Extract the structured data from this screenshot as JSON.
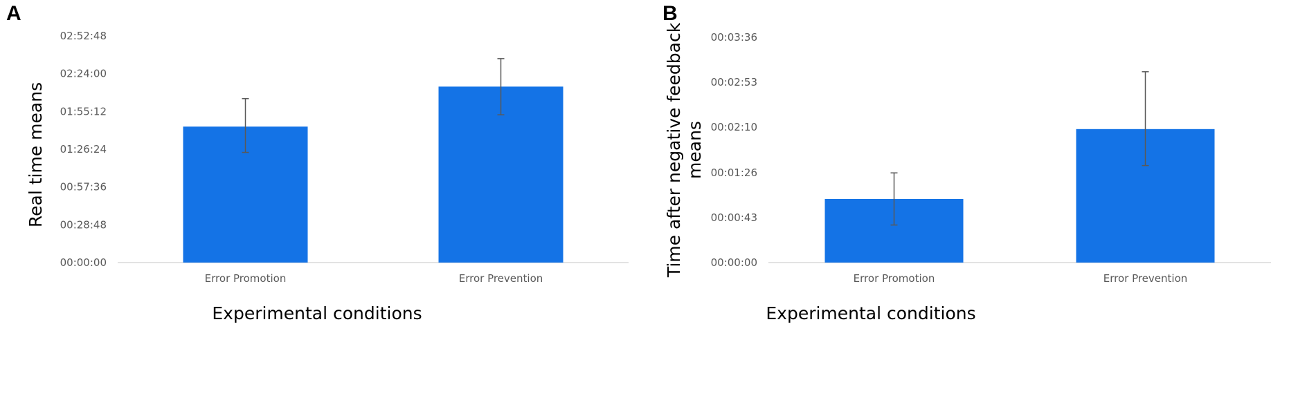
{
  "panels": [
    "A",
    "B"
  ],
  "chart_data": [
    {
      "panel": "A",
      "type": "bar",
      "categories": [
        "Error Promotion",
        "Error Prevention"
      ],
      "values": [
        "01:43:40",
        "02:14:10"
      ],
      "error_bars": [
        {
          "low": "01:24:00",
          "high": "02:05:00"
        },
        {
          "low": "01:52:40",
          "high": "02:35:30"
        }
      ],
      "y_ticks": [
        "00:00:00",
        "00:28:48",
        "00:57:36",
        "01:26:24",
        "01:55:12",
        "02:24:00",
        "02:52:48"
      ],
      "ylim": [
        "00:00:00",
        "02:52:48"
      ],
      "xlabel": "Experimental conditions",
      "ylabel": "Real time means",
      "grid": false,
      "color": "#1473e6"
    },
    {
      "panel": "B",
      "type": "bar",
      "categories": [
        "Error Promotion",
        "Error Prevention"
      ],
      "values": [
        "00:01:01",
        "00:02:08"
      ],
      "error_bars": [
        {
          "low": "00:00:36",
          "high": "00:01:26"
        },
        {
          "low": "00:01:33",
          "high": "00:03:03"
        }
      ],
      "y_ticks": [
        "00:00:00",
        "00:00:43",
        "00:01:26",
        "00:02:10",
        "00:02:53",
        "00:03:36"
      ],
      "ylim": [
        "00:00:00",
        "00:03:36"
      ],
      "xlabel": "Experimental conditions",
      "ylabel": "Time after negative feedback means",
      "grid": false,
      "color": "#1473e6"
    }
  ]
}
